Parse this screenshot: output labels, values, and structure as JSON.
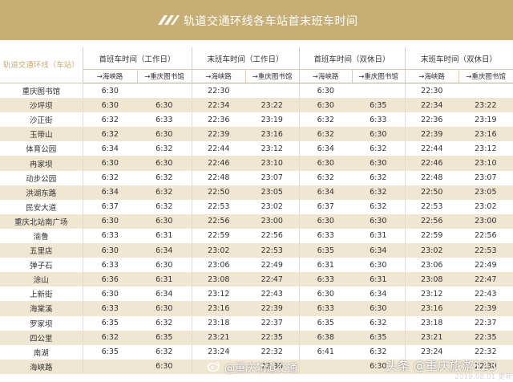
{
  "banner": {
    "title": "轨道交通环线各车站首末班车时间",
    "logo_icon": "rail-transit-logo"
  },
  "columns": {
    "station_header": "轨道交通环线（车站）",
    "groups": [
      "首班车时间（工作日）",
      "末班车时间（工作日）",
      "首班车时间（双休日）",
      "末班车时间（双休日）"
    ],
    "directions": [
      "→海峡路",
      "→重庆图书馆"
    ]
  },
  "rows": [
    {
      "station": "重庆图书馆",
      "v": [
        "6:30",
        "",
        "22:30",
        "",
        "6:30",
        "",
        "22:30",
        ""
      ]
    },
    {
      "station": "沙坪坝",
      "v": [
        "6:30",
        "6:30",
        "22:34",
        "23:22",
        "6:30",
        "6:35",
        "22:34",
        "23:22"
      ]
    },
    {
      "station": "沙正街",
      "v": [
        "6:32",
        "6:33",
        "22:36",
        "23:19",
        "6:32",
        "6:33",
        "22:36",
        "23:19"
      ]
    },
    {
      "station": "玉带山",
      "v": [
        "6:32",
        "6:30",
        "22:39",
        "23:16",
        "6:32",
        "6:30",
        "22:39",
        "23:16"
      ]
    },
    {
      "station": "体育公园",
      "v": [
        "6:34",
        "6:32",
        "22:44",
        "23:12",
        "6:34",
        "6:32",
        "22:44",
        "23:12"
      ]
    },
    {
      "station": "冉家坝",
      "v": [
        "6:30",
        "6:30",
        "22:46",
        "23:10",
        "6:30",
        "6:30",
        "22:46",
        "23:10"
      ]
    },
    {
      "station": "动步公园",
      "v": [
        "6:32",
        "6:32",
        "22:48",
        "23:07",
        "6:32",
        "6:32",
        "22:48",
        "23:07"
      ]
    },
    {
      "station": "洪湖东路",
      "v": [
        "6:34",
        "6:32",
        "22:50",
        "23:05",
        "6:34",
        "6:32",
        "22:50",
        "23:05"
      ]
    },
    {
      "station": "民安大道",
      "v": [
        "6:37",
        "6:32",
        "22:53",
        "23:02",
        "6:37",
        "6:32",
        "22:53",
        "23:02"
      ]
    },
    {
      "station": "重庆北站南广场",
      "v": [
        "6:30",
        "6:30",
        "22:56",
        "23:00",
        "6:30",
        "6:30",
        "22:56",
        "23:00"
      ]
    },
    {
      "station": "渝鲁",
      "v": [
        "6:33",
        "6:31",
        "22:59",
        "22:56",
        "6:33",
        "6:31",
        "22:59",
        "22:56"
      ]
    },
    {
      "station": "五里店",
      "v": [
        "6:30",
        "6:34",
        "23:02",
        "22:53",
        "6:35",
        "6:34",
        "23:02",
        "22:53"
      ]
    },
    {
      "station": "弹子石",
      "v": [
        "6:33",
        "6:30",
        "23:06",
        "22:49",
        "6:31",
        "6:30",
        "23:06",
        "22:49"
      ]
    },
    {
      "station": "涂山",
      "v": [
        "6:36",
        "6:31",
        "23:08",
        "22:47",
        "6:33",
        "6:31",
        "23:08",
        "22:47"
      ]
    },
    {
      "station": "上新街",
      "v": [
        "6:30",
        "6:34",
        "23:12",
        "22:43",
        "6:30",
        "6:34",
        "23:12",
        "22:43"
      ]
    },
    {
      "station": "海棠溪",
      "v": [
        "6:33",
        "6:30",
        "23:16",
        "22:39",
        "6:33",
        "6:30",
        "23:16",
        "22:39"
      ]
    },
    {
      "station": "罗家坝",
      "v": [
        "6:35",
        "6:32",
        "23:18",
        "22:37",
        "6:35",
        "6:32",
        "23:18",
        "22:37"
      ]
    },
    {
      "station": "四公里",
      "v": [
        "6:32",
        "6:35",
        "23:21",
        "22:35",
        "6:38",
        "6:35",
        "23:21",
        "22:35"
      ]
    },
    {
      "station": "南湖",
      "v": [
        "6:35",
        "6:32",
        "23:24",
        "22:32",
        "6:41",
        "6:32",
        "23:24",
        "22:32"
      ]
    },
    {
      "station": "海峡路",
      "v": [
        "",
        "6:30",
        "",
        "22:30",
        "",
        "6:30",
        "",
        "22:30"
      ]
    }
  ],
  "watermarks": {
    "weibo": "@重庆轨道交通",
    "toutiao": "头条 @重庆旅游123",
    "date": "2019.08.01 更新"
  }
}
